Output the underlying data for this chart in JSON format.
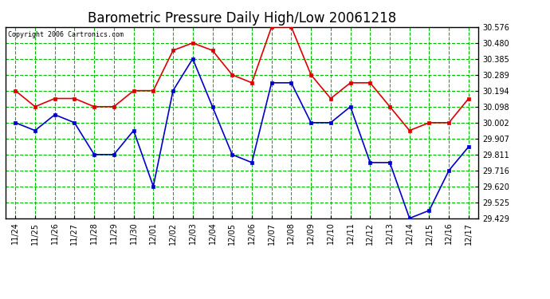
{
  "title": "Barometric Pressure Daily High/Low 20061218",
  "copyright": "Copyright 2006 Cartronics.com",
  "labels": [
    "11/24",
    "11/25",
    "11/26",
    "11/27",
    "11/28",
    "11/29",
    "11/30",
    "12/01",
    "12/02",
    "12/03",
    "12/04",
    "12/05",
    "12/06",
    "12/07",
    "12/08",
    "12/09",
    "12/10",
    "12/11",
    "12/12",
    "12/13",
    "12/14",
    "12/15",
    "12/16",
    "12/17"
  ],
  "high": [
    30.194,
    30.098,
    30.147,
    30.147,
    30.098,
    30.098,
    30.194,
    30.194,
    30.435,
    30.48,
    30.435,
    30.289,
    30.241,
    30.576,
    30.576,
    30.289,
    30.147,
    30.241,
    30.241,
    30.098,
    29.955,
    30.002,
    30.002,
    30.147
  ],
  "low": [
    30.002,
    29.955,
    30.05,
    30.002,
    29.811,
    29.811,
    29.955,
    29.62,
    30.194,
    30.385,
    30.098,
    29.811,
    29.763,
    30.241,
    30.241,
    30.002,
    30.002,
    30.098,
    29.763,
    29.763,
    29.429,
    29.476,
    29.716,
    29.858
  ],
  "ylim_min": 29.429,
  "ylim_max": 30.576,
  "yticks": [
    29.429,
    29.525,
    29.62,
    29.716,
    29.811,
    29.907,
    30.002,
    30.098,
    30.194,
    30.289,
    30.385,
    30.48,
    30.576
  ],
  "fig_bg_color": "#ffffff",
  "plot_bg_color": "#ffffff",
  "grid_color": "#00bb00",
  "high_color": "#dd0000",
  "low_color": "#0000cc",
  "title_fontsize": 12,
  "tick_fontsize": 7,
  "copyright_fontsize": 6
}
